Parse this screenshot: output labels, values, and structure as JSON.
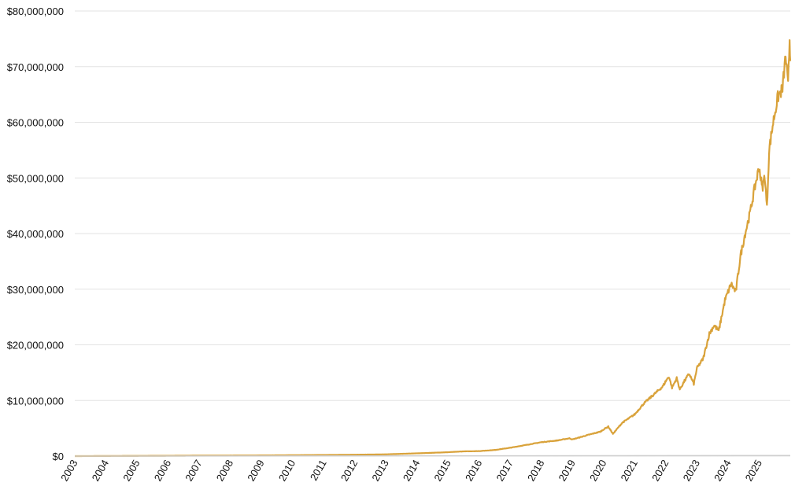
{
  "chart_data": {
    "type": "line",
    "title": "",
    "xlabel": "",
    "ylabel": "",
    "xlim": [
      2003,
      2026
    ],
    "ylim": [
      0,
      80000000
    ],
    "grid": true,
    "y_ticks": [
      0,
      10000000,
      20000000,
      30000000,
      40000000,
      50000000,
      60000000,
      70000000,
      80000000
    ],
    "y_tick_labels": [
      "$0",
      "$10,000,000",
      "$20,000,000",
      "$30,000,000",
      "$40,000,000",
      "$50,000,000",
      "$60,000,000",
      "$70,000,000",
      "$80,000,000"
    ],
    "x_tick_labels": [
      "2003",
      "2004",
      "2005",
      "2006",
      "2007",
      "2008",
      "2009",
      "2010",
      "2011",
      "2012",
      "2013",
      "2014",
      "2015",
      "2016",
      "2017",
      "2018",
      "2019",
      "2020",
      "2021",
      "2022",
      "2023",
      "2024",
      "2025"
    ],
    "colors": {
      "main": "#d9a23a",
      "baseline": "#cfcfcf"
    },
    "series": [
      {
        "color": "#d9a23a",
        "x": [
          2003,
          2004,
          2005,
          2006,
          2007,
          2008,
          2009,
          2010,
          2011,
          2012,
          2013,
          2014,
          2015,
          2015.5,
          2016,
          2016.5,
          2017,
          2017.5,
          2018,
          2018.5,
          2018.9,
          2019,
          2019.5,
          2019.9,
          2020,
          2020.15,
          2020.3,
          2020.6,
          2021,
          2021.3,
          2021.6,
          2021.9,
          2022.0,
          2022.1,
          2022.2,
          2022.35,
          2022.45,
          2022.6,
          2022.75,
          2022.9,
          2023.0,
          2023.2,
          2023.4,
          2023.55,
          2023.7,
          2023.9,
          2024.1,
          2024.25,
          2024.4,
          2024.55,
          2024.7,
          2024.85,
          2025.0,
          2025.1,
          2025.18,
          2025.25,
          2025.32,
          2025.45,
          2025.6,
          2025.75,
          2025.85,
          2025.93,
          2025.98,
          2026.0
        ],
        "values": [
          0,
          20000,
          40000,
          60000,
          90000,
          100000,
          120000,
          160000,
          200000,
          250000,
          320000,
          500000,
          700000,
          850000,
          900000,
          1100000,
          1500000,
          2000000,
          2500000,
          2800000,
          3200000,
          3000000,
          3800000,
          4400000,
          4800000,
          5300000,
          4000000,
          6000000,
          7500000,
          9500000,
          11000000,
          12500000,
          13500000,
          14300000,
          12300000,
          14000000,
          12000000,
          13500000,
          14800000,
          13000000,
          15800000,
          17500000,
          22000000,
          23500000,
          22500000,
          28000000,
          31000000,
          29500000,
          36000000,
          40000000,
          43500000,
          48000000,
          52000000,
          48000000,
          50500000,
          44500000,
          55000000,
          60000000,
          64500000,
          66000000,
          72000000,
          66500000,
          75000000,
          71000000
        ]
      },
      {
        "color": "#cfcfcf",
        "x": [
          2003,
          2026
        ],
        "values": [
          0,
          100000
        ]
      }
    ]
  }
}
